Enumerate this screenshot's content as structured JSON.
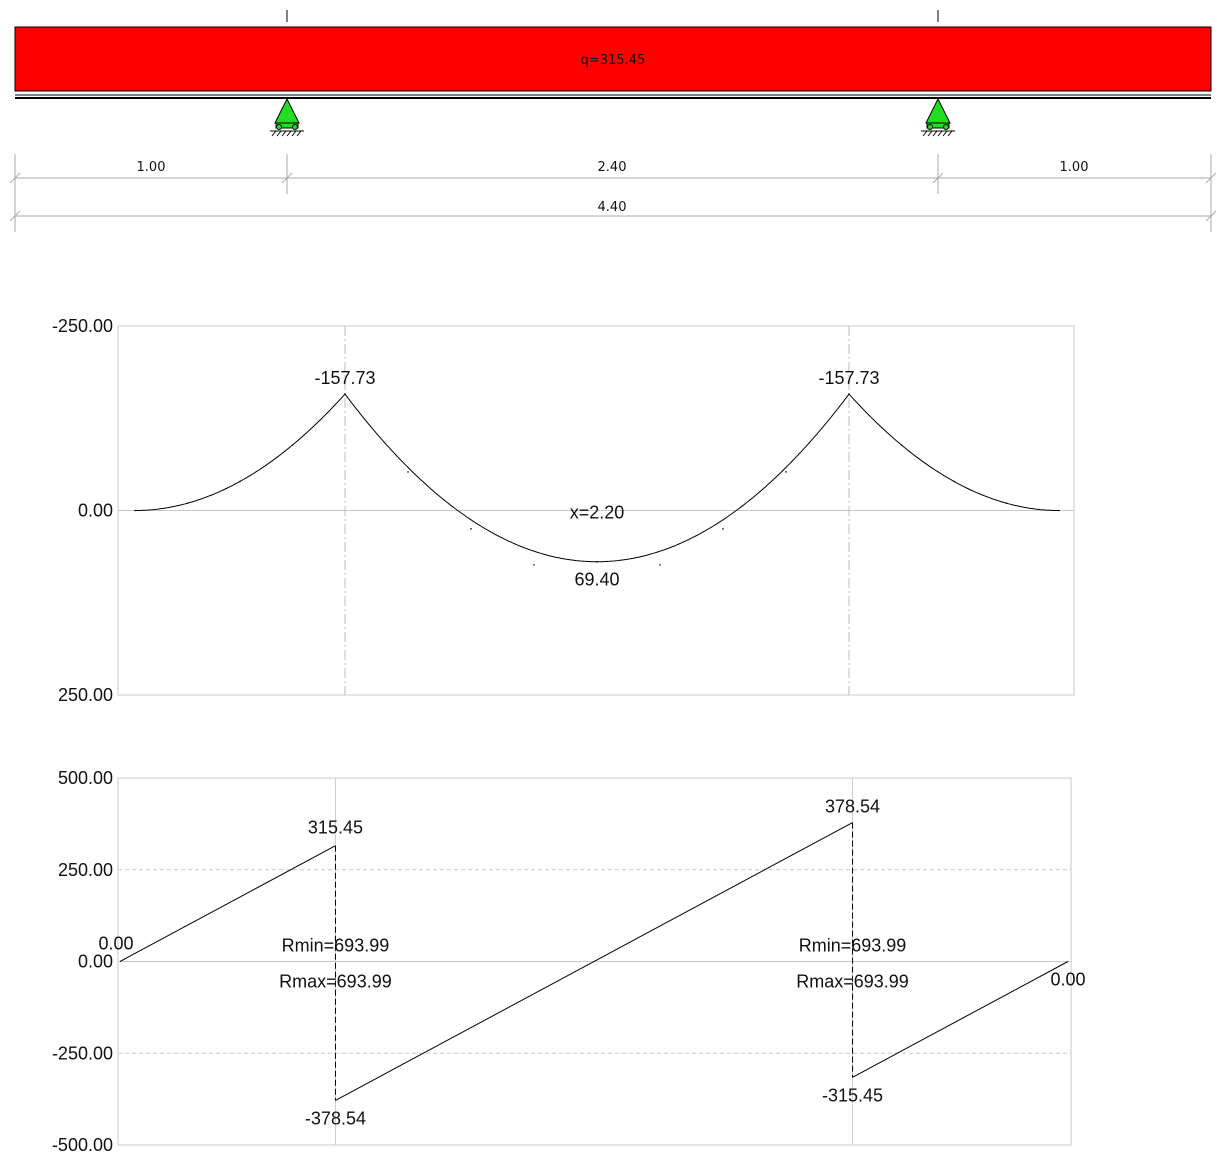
{
  "beam": {
    "load_label": "q=315.45",
    "load_color": "#ff0000",
    "support_color": "#22dd22",
    "spans": [
      "1.00",
      "2.40",
      "1.00"
    ],
    "total": "4.40"
  },
  "chart_data": [
    {
      "type": "line",
      "name": "bending-moment",
      "ylim": [
        -250,
        250
      ],
      "y_inverted": true,
      "yticks": [
        "-250.00",
        "0.00",
        "250.00"
      ],
      "x": [
        0.0,
        0.25,
        0.5,
        0.75,
        1.0,
        1.3,
        1.6,
        1.9,
        2.2,
        2.5,
        2.8,
        3.1,
        3.4,
        3.65,
        3.9,
        4.15,
        4.4
      ],
      "values": [
        0,
        -9.86,
        -39.43,
        -88.72,
        -157.73,
        -52.3,
        24.83,
        73.71,
        69.4,
        73.71,
        24.83,
        -52.3,
        -157.73,
        -88.72,
        -39.43,
        -9.86,
        0
      ],
      "annotations": [
        {
          "text": "-157.73",
          "x": 1.0,
          "y": -157.73
        },
        {
          "text": "-157.73",
          "x": 3.4,
          "y": -157.73
        },
        {
          "text": "x=2.20",
          "x": 2.2,
          "y": 0
        },
        {
          "text": "69.40",
          "x": 2.2,
          "y": 69.4
        }
      ],
      "support_lines_x": [
        1.0,
        3.4
      ]
    },
    {
      "type": "line",
      "name": "shear-force",
      "ylim": [
        -500,
        500
      ],
      "yticks": [
        "500.00",
        "250.00",
        "0.00",
        "-250.00",
        "-500.00"
      ],
      "series": [
        {
          "x": [
            0.0,
            1.0
          ],
          "values": [
            0,
            315.45
          ]
        },
        {
          "x": [
            1.0,
            3.4
          ],
          "values": [
            -378.54,
            378.54
          ]
        },
        {
          "x": [
            3.4,
            4.4
          ],
          "values": [
            -315.45,
            0
          ]
        }
      ],
      "annotations": [
        {
          "text": "0.00",
          "x": 0.0,
          "y": 0
        },
        {
          "text": "315.45",
          "x": 1.0,
          "y": 315.45
        },
        {
          "text": "-378.54",
          "x": 1.0,
          "y": -378.54
        },
        {
          "text": "378.54",
          "x": 3.4,
          "y": 378.54
        },
        {
          "text": "-315.45",
          "x": 3.4,
          "y": -315.45
        },
        {
          "text": "0.00",
          "x": 4.4,
          "y": 0
        }
      ],
      "reactions": [
        {
          "rmin": "Rmin=693.99",
          "rmax": "Rmax=693.99",
          "x": 1.0
        },
        {
          "rmin": "Rmin=693.99",
          "rmax": "Rmax=693.99",
          "x": 3.4
        }
      ]
    }
  ]
}
